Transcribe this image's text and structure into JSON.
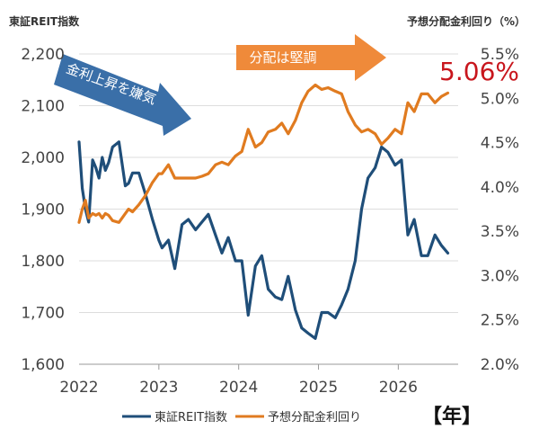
{
  "chart_data": {
    "type": "line",
    "left_axis_title": "東証REIT指数",
    "right_axis_title": "予想分配金利回り（%）",
    "left_ylim": [
      1600,
      2200
    ],
    "left_ticks": [
      "1,600",
      "1,700",
      "1,800",
      "1,900",
      "2,000",
      "2,100",
      "2,200"
    ],
    "left_tick_values": [
      1600,
      1700,
      1800,
      1900,
      2000,
      2100,
      2200
    ],
    "right_ylim": [
      2.0,
      5.5
    ],
    "right_ticks": [
      "2.0%",
      "2.5%",
      "3.0%",
      "3.5%",
      "4.0%",
      "4.5%",
      "5.0%",
      "5.5%"
    ],
    "right_tick_values": [
      2.0,
      2.5,
      3.0,
      3.5,
      4.0,
      4.5,
      5.0,
      5.5
    ],
    "xlim": [
      2022.0,
      2026.75
    ],
    "x_ticks": [
      "2022",
      "2023",
      "2024",
      "2025",
      "2026"
    ],
    "x_tick_values": [
      2022,
      2023,
      2024,
      2025,
      2026
    ],
    "x_unit": "【年】",
    "grid": "horizontal",
    "series": [
      {
        "name": "東証REIT指数",
        "axis": "left",
        "color": "#1f4e79",
        "x": [
          2022.0,
          2022.04,
          2022.08,
          2022.12,
          2022.17,
          2022.21,
          2022.25,
          2022.29,
          2022.33,
          2022.37,
          2022.42,
          2022.5,
          2022.58,
          2022.62,
          2022.67,
          2022.75,
          2022.83,
          2022.92,
          2023.0,
          2023.04,
          2023.12,
          2023.2,
          2023.29,
          2023.37,
          2023.46,
          2023.54,
          2023.62,
          2023.71,
          2023.79,
          2023.87,
          2023.96,
          2024.04,
          2024.12,
          2024.21,
          2024.29,
          2024.37,
          2024.46,
          2024.54,
          2024.62,
          2024.71,
          2024.79,
          2024.87,
          2024.96,
          2025.04,
          2025.12,
          2025.21,
          2025.29,
          2025.37,
          2025.46,
          2025.54,
          2025.62,
          2025.71,
          2025.79,
          2025.87,
          2025.96,
          2026.04,
          2026.12,
          2026.2,
          2026.29,
          2026.37,
          2026.46,
          2026.54,
          2026.62
        ],
        "values": [
          2030,
          1940,
          1900,
          1875,
          1995,
          1980,
          1960,
          2000,
          1975,
          1990,
          2020,
          2030,
          1945,
          1950,
          1970,
          1970,
          1930,
          1880,
          1840,
          1825,
          1840,
          1785,
          1870,
          1880,
          1860,
          1875,
          1890,
          1850,
          1815,
          1845,
          1800,
          1800,
          1695,
          1790,
          1810,
          1745,
          1730,
          1725,
          1770,
          1705,
          1670,
          1660,
          1650,
          1700,
          1700,
          1690,
          1715,
          1745,
          1800,
          1900,
          1960,
          1980,
          2020,
          2010,
          1985,
          1995,
          1850,
          1880,
          1810,
          1810,
          1850,
          1830,
          1815
        ]
      },
      {
        "name": "予想分配金利回り",
        "axis": "right",
        "color": "#e07b20",
        "x": [
          2022.0,
          2022.04,
          2022.08,
          2022.12,
          2022.17,
          2022.21,
          2022.25,
          2022.29,
          2022.33,
          2022.37,
          2022.42,
          2022.5,
          2022.58,
          2022.62,
          2022.67,
          2022.75,
          2022.83,
          2022.92,
          2023.0,
          2023.04,
          2023.12,
          2023.2,
          2023.29,
          2023.37,
          2023.46,
          2023.54,
          2023.62,
          2023.71,
          2023.79,
          2023.87,
          2023.96,
          2024.04,
          2024.12,
          2024.21,
          2024.29,
          2024.37,
          2024.46,
          2024.54,
          2024.62,
          2024.71,
          2024.79,
          2024.87,
          2024.96,
          2025.04,
          2025.12,
          2025.21,
          2025.29,
          2025.37,
          2025.46,
          2025.54,
          2025.62,
          2025.71,
          2025.79,
          2025.87,
          2025.96,
          2026.04,
          2026.12,
          2026.2,
          2026.29,
          2026.37,
          2026.46,
          2026.54,
          2026.62
        ],
        "values": [
          3.6,
          3.75,
          3.85,
          3.65,
          3.7,
          3.68,
          3.7,
          3.65,
          3.7,
          3.68,
          3.62,
          3.6,
          3.7,
          3.75,
          3.72,
          3.8,
          3.9,
          4.05,
          4.15,
          4.15,
          4.25,
          4.1,
          4.1,
          4.1,
          4.1,
          4.12,
          4.15,
          4.25,
          4.28,
          4.25,
          4.35,
          4.4,
          4.65,
          4.45,
          4.5,
          4.62,
          4.65,
          4.72,
          4.6,
          4.75,
          4.95,
          5.08,
          5.15,
          5.1,
          5.12,
          5.08,
          5.05,
          4.85,
          4.7,
          4.62,
          4.65,
          4.6,
          4.48,
          4.55,
          4.65,
          4.6,
          4.95,
          4.85,
          5.05,
          5.05,
          4.95,
          5.02,
          5.06
        ]
      }
    ],
    "annotations": [
      {
        "text": "金利上昇を嫌気",
        "color": "#3a6fa8",
        "direction": "down-right"
      },
      {
        "text": "分配は堅調",
        "color": "#ef8a3a",
        "direction": "right"
      }
    ],
    "highlight_value": "5.06%",
    "highlight_color": "#c8161d",
    "legend": [
      "東証REIT指数",
      "予想分配金利回り"
    ],
    "legend_position": "bottom"
  }
}
